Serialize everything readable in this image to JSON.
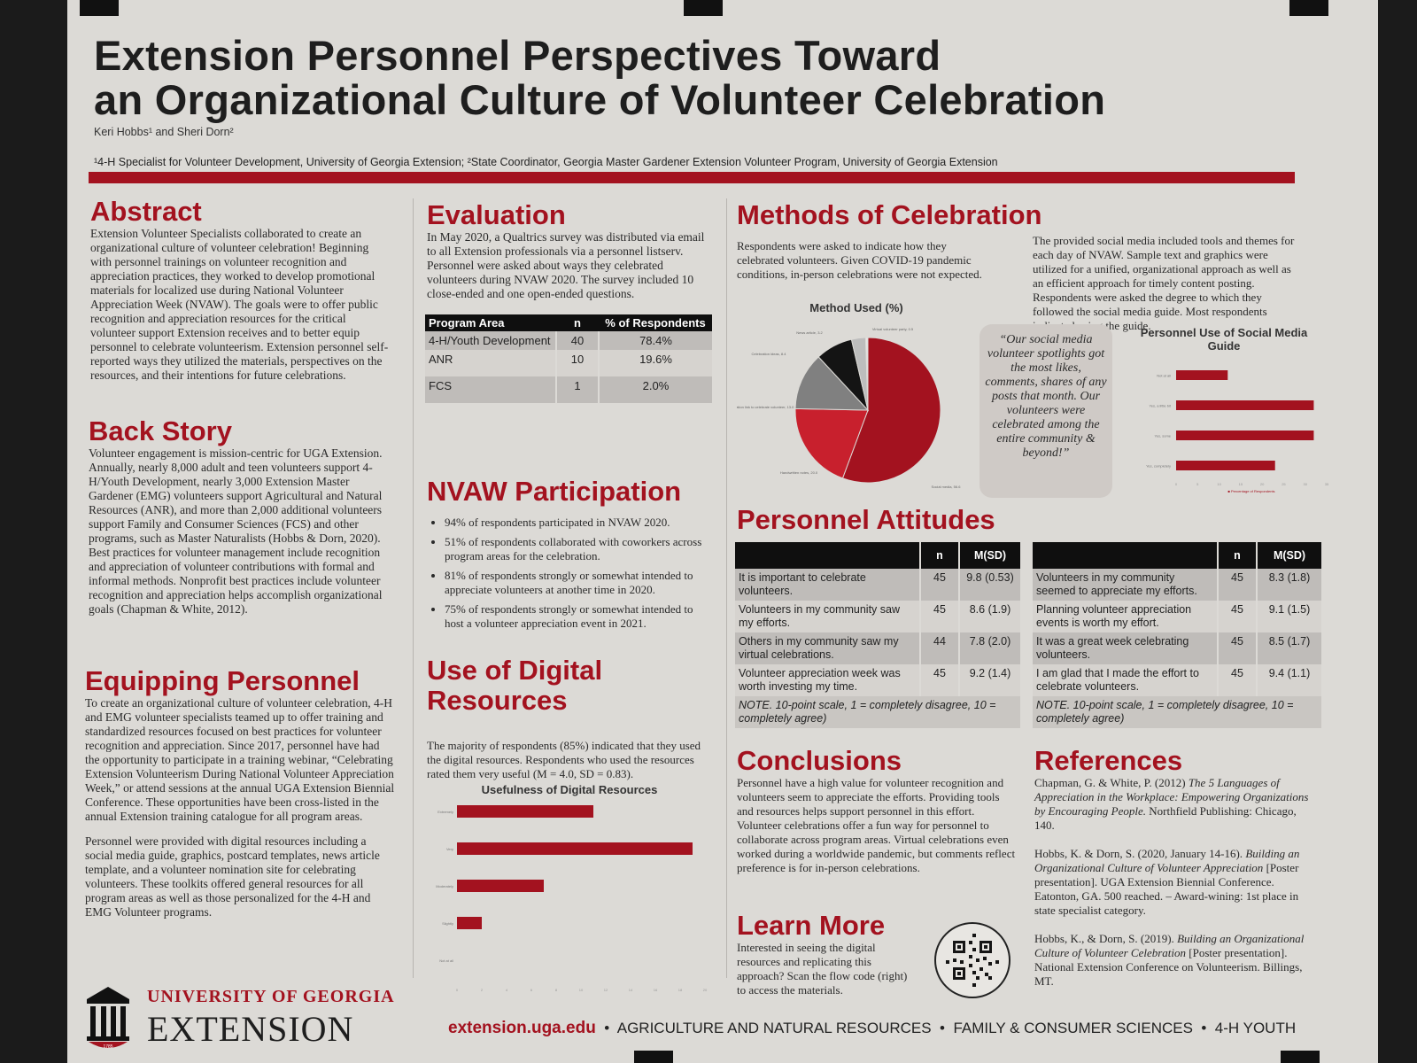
{
  "header": {
    "title_line1": "Extension Personnel Perspectives Toward",
    "title_line2": "an Organizational Culture of Volunteer Celebration",
    "authors": "Keri Hobbs¹ and Sheri Dorn²",
    "affiliations": "¹4-H Specialist for Volunteer Development, University of Georgia Extension; ²State Coordinator, Georgia Master Gardener Extension Volunteer Program, University of Georgia Extension"
  },
  "abstract": {
    "heading": "Abstract",
    "text": "Extension Volunteer Specialists collaborated to create an organizational culture of volunteer celebration! Beginning with personnel trainings on volunteer recognition and appreciation practices, they worked to develop promotional materials for localized use during National Volunteer Appreciation Week (NVAW). The goals were to offer public recognition and appreciation resources for the critical volunteer support Extension receives and to better equip personnel to celebrate volunteerism. Extension personnel self-reported ways they utilized the materials, perspectives on the resources, and their intentions for future celebrations."
  },
  "back_story": {
    "heading": "Back Story",
    "text": "Volunteer engagement is mission-centric for UGA Extension. Annually, nearly 8,000 adult and teen volunteers support 4-H/Youth Development, nearly 3,000 Extension Master Gardener (EMG) volunteers support Agricultural and Natural Resources (ANR), and more than 2,000 additional volunteers support Family and Consumer Sciences (FCS) and other programs, such as Master Naturalists (Hobbs & Dorn, 2020). Best practices for volunteer management include recognition and appreciation of volunteer contributions with formal and informal methods. Nonprofit best practices include volunteer recognition and appreciation helps accomplish organizational goals (Chapman & White, 2012)."
  },
  "equipping": {
    "heading": "Equipping Personnel",
    "text1": "To create an organizational culture of volunteer celebration, 4-H and EMG volunteer specialists teamed up to offer training and standardized resources focused on best practices for volunteer recognition and appreciation. Since 2017, personnel have had the opportunity to participate in a training webinar, “Celebrating Extension Volunteerism During National Volunteer Appreciation Week,” or attend sessions at the annual UGA Extension Biennial Conference. These opportunities have been cross-listed in the annual Extension training catalogue for all program areas.",
    "text2": "Personnel were provided with digital resources including a social media guide, graphics, postcard templates, news article template, and a volunteer nomination site for celebrating volunteers. These toolkits offered general resources for all program areas as well as those personalized for the 4-H and EMG Volunteer programs."
  },
  "logo": {
    "line1": "UNIVERSITY OF GEORGIA",
    "line2": "EXTENSION",
    "year": "1785"
  },
  "evaluation": {
    "heading": "Evaluation",
    "text": "In May 2020, a Qualtrics survey was distributed via email to all Extension professionals via a personnel listserv. Personnel were asked about ways they celebrated volunteers during NVAW 2020. The survey included 10 close-ended and one open-ended questions.",
    "table": {
      "headers": [
        "Program Area",
        "n",
        "% of Respondents"
      ],
      "rows": [
        [
          "4-H/Youth Development",
          "40",
          "78.4%"
        ],
        [
          "ANR",
          "10",
          "19.6%"
        ],
        [
          "FCS",
          "1",
          "2.0%"
        ]
      ]
    }
  },
  "nvaw": {
    "heading": "NVAW Participation",
    "bullets": [
      "94% of respondents participated in NVAW 2020.",
      "51% of respondents collaborated with coworkers across program areas for the celebration.",
      "81% of respondents strongly or somewhat intended to appreciate volunteers at another time in 2020.",
      "75% of respondents strongly or somewhat intended to host a volunteer appreciation event in 2021."
    ]
  },
  "digital": {
    "heading_line1": "Use of Digital",
    "heading_line2": "Resources",
    "text": "The majority of respondents (85%) indicated that they used the digital resources. Respondents who used the resources rated them very useful (M = 4.0, SD = 0.83)."
  },
  "methods": {
    "heading": "Methods of Celebration",
    "text1": "Respondents were asked to indicate how they celebrated volunteers. Given COVID-19 pandemic conditions, in-person celebrations were not expected.",
    "text2": "The provided social media included tools and themes for each day of NVAW. Sample text and graphics were utilized for a unified, organizational approach as well as an efficient approach for timely content posting. Respondents were asked the degree to which they followed the social media guide. Most respondents indicated using the guide.",
    "quote": "“Our social media volunteer spotlights got the most likes, comments, shares of any posts that month. Our volunteers were celebrated among the entire community & beyond!”"
  },
  "attitudes": {
    "heading": "Personnel Attitudes",
    "headers": [
      "",
      "n",
      "M(SD)"
    ],
    "left_rows": [
      [
        "It is important to celebrate volunteers.",
        "45",
        "9.8 (0.53)"
      ],
      [
        "Volunteers in my community saw my efforts.",
        "45",
        "8.6 (1.9)"
      ],
      [
        "Others in my community saw my virtual celebrations.",
        "44",
        "7.8 (2.0)"
      ],
      [
        "Volunteer appreciation week was worth investing my time.",
        "45",
        "9.2 (1.4)"
      ]
    ],
    "right_rows": [
      [
        "Volunteers in my community seemed to appreciate my efforts.",
        "45",
        "8.3 (1.8)"
      ],
      [
        "Planning volunteer appreciation events is worth my effort.",
        "45",
        "9.1 (1.5)"
      ],
      [
        "It was a great week celebrating volunteers.",
        "45",
        "8.5 (1.7)"
      ],
      [
        "I am glad that I made the effort to celebrate volunteers.",
        "45",
        "9.4 (1.1)"
      ]
    ],
    "note": "NOTE. 10-point scale, 1 = completely disagree, 10 = completely agree)"
  },
  "conclusions": {
    "heading": "Conclusions",
    "text": "Personnel have a high value for volunteer recognition and volunteers seem to appreciate the efforts. Providing tools and resources helps support personnel in this effort. Volunteer celebrations offer a fun way for personnel to collaborate across program areas. Virtual celebrations even worked during a worldwide pandemic, but comments reflect preference is for in-person celebrations."
  },
  "learn_more": {
    "heading": "Learn More",
    "text": "Interested in seeing the digital resources and replicating this approach? Scan the flow code (right) to access the materials."
  },
  "references": {
    "heading": "References",
    "items": [
      {
        "plain": "Chapman, G. & White, P. (2012) ",
        "italic": "The 5 Languages of Appreciation in the Workplace: Empowering Organizations by Encouraging People.",
        "rest": " Northfield Publishing: Chicago, 140."
      },
      {
        "plain": "Hobbs, K. & Dorn, S. (2020, January 14-16). ",
        "italic": "Building an Organizational Culture of Volunteer Appreciation",
        "rest": " [Poster presentation]. UGA Extension Biennial Conference. Eatonton, GA. 500 reached. – Award-wining: 1st place in state specialist category."
      },
      {
        "plain": "Hobbs, K., & Dorn, S. (2019). ",
        "italic": "Building an Organizational Culture of Volunteer Celebration",
        "rest": " [Poster presentation]. National Extension Conference on Volunteerism. Billings, MT."
      }
    ]
  },
  "footer": {
    "url": "extension.uga.edu",
    "sep": "•",
    "p1": "AGRICULTURE AND NATURAL RESOURCES",
    "p2": "FAMILY & CONSUMER SCIENCES",
    "p3": "4-H YOUTH"
  },
  "colors": {
    "accent": "#a3121f",
    "dark": "#1e1e1e",
    "gray": "#8a8886",
    "light": "#c9c6c2"
  },
  "chart_data": [
    {
      "type": "bar",
      "orientation": "horizontal",
      "title": "Usefulness of Digital Resources",
      "categories": [
        "Extremely",
        "Very",
        "Moderately",
        "Slightly",
        "Not at all"
      ],
      "values": [
        11,
        19,
        7,
        2,
        0
      ],
      "xlim": [
        0,
        20
      ],
      "xticks": [
        0,
        2,
        4,
        6,
        8,
        10,
        12,
        14,
        16,
        18,
        20
      ]
    },
    {
      "type": "pie",
      "title": "Method Used (%)",
      "labels": [
        "Social media",
        "Handwritten notes",
        "Nomination link to celebrate volunteer",
        "Celebration ideas",
        "News article",
        "Virtual volunteer party"
      ],
      "values": [
        56.6,
        20.0,
        13.0,
        8.4,
        3.2,
        0.5
      ],
      "data_labels": [
        "Social media, 56.6",
        "Handwritten notes, 20.0",
        "Nomination link to celebrate volunteer, 13.0",
        "Celebration ideas, 8.4",
        "News article, 3.2",
        "Virtual volunteer party, 0.5"
      ],
      "colors": [
        "#a3121f",
        "#c8202d",
        "#808080",
        "#141414",
        "#bdbdbd",
        "#e6e6e6"
      ]
    },
    {
      "type": "bar",
      "orientation": "horizontal",
      "title": "Personnel Use of Social Media Guide",
      "categories": [
        "Not at all",
        "Yes, a little bit",
        "Yes, some",
        "Yes, completely"
      ],
      "values": [
        12,
        32,
        32,
        23
      ],
      "xlim": [
        0,
        35
      ],
      "xticks": [
        0,
        5,
        10,
        15,
        20,
        25,
        30,
        35
      ],
      "xlabel": "Percentage of Respondents"
    }
  ]
}
